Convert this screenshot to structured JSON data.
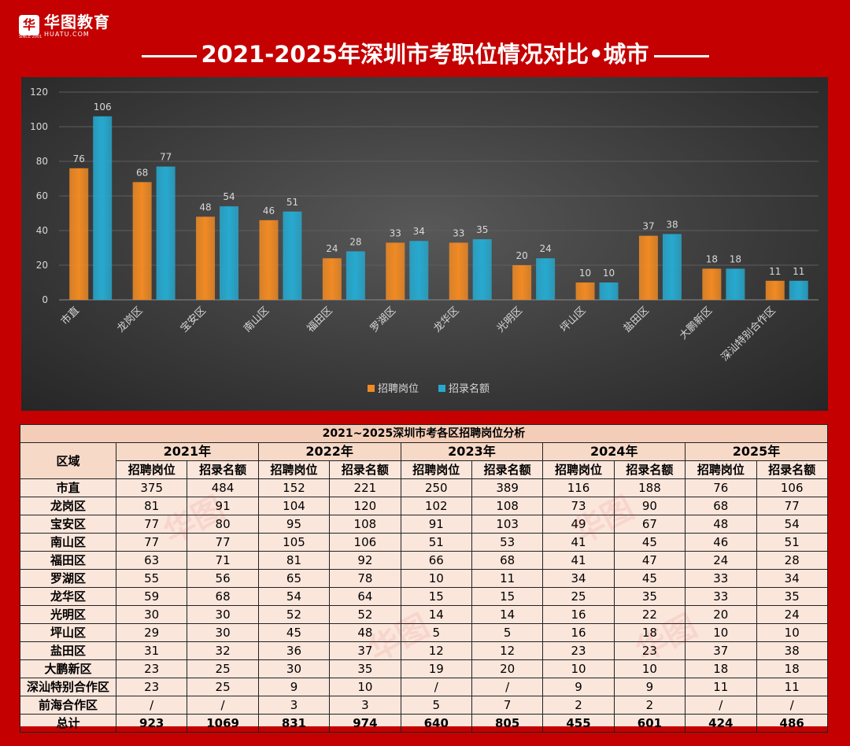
{
  "header": {
    "logo_cn": "华图教育",
    "logo_en": "HUATU.COM",
    "logo_since": "SINCE 2001",
    "title": "2021-2025年深圳市考职位情况对比•城市"
  },
  "colors": {
    "background": "#c40000",
    "series_posts": "#f08a24",
    "series_quota": "#27a9cf",
    "panel": "#3c3c3c"
  },
  "chart_data": {
    "type": "bar",
    "title": "",
    "categories": [
      "市直",
      "龙岗区",
      "宝安区",
      "南山区",
      "福田区",
      "罗湖区",
      "龙华区",
      "光明区",
      "坪山区",
      "盐田区",
      "大鹏新区",
      "深汕特别合作区"
    ],
    "series": [
      {
        "name": "招聘岗位",
        "values": [
          76,
          68,
          48,
          46,
          24,
          33,
          33,
          20,
          10,
          37,
          18,
          11
        ]
      },
      {
        "name": "招录名额",
        "values": [
          106,
          77,
          54,
          51,
          28,
          34,
          35,
          24,
          10,
          38,
          18,
          11
        ]
      }
    ],
    "ylim": [
      0,
      120
    ],
    "yticks": [
      0,
      20,
      40,
      60,
      80,
      100,
      120
    ],
    "legend": "bottom",
    "xlabel": "",
    "ylabel": ""
  },
  "table": {
    "caption": "2021~2025深圳市考各区招聘岗位分析",
    "region_header": "区域",
    "years": [
      "2021年",
      "2022年",
      "2023年",
      "2024年",
      "2025年"
    ],
    "sub_headers": [
      "招聘岗位",
      "招录名额"
    ],
    "rows": [
      {
        "region": "市直",
        "values": [
          "375",
          "484",
          "152",
          "221",
          "250",
          "389",
          "116",
          "188",
          "76",
          "106"
        ]
      },
      {
        "region": "龙岗区",
        "values": [
          "81",
          "91",
          "104",
          "120",
          "102",
          "108",
          "73",
          "90",
          "68",
          "77"
        ]
      },
      {
        "region": "宝安区",
        "values": [
          "77",
          "80",
          "95",
          "108",
          "91",
          "103",
          "49",
          "67",
          "48",
          "54"
        ]
      },
      {
        "region": "南山区",
        "values": [
          "77",
          "77",
          "105",
          "106",
          "51",
          "53",
          "41",
          "45",
          "46",
          "51"
        ]
      },
      {
        "region": "福田区",
        "values": [
          "63",
          "71",
          "81",
          "92",
          "66",
          "68",
          "41",
          "47",
          "24",
          "28"
        ]
      },
      {
        "region": "罗湖区",
        "values": [
          "55",
          "56",
          "65",
          "78",
          "10",
          "11",
          "34",
          "45",
          "33",
          "34"
        ]
      },
      {
        "region": "龙华区",
        "values": [
          "59",
          "68",
          "54",
          "64",
          "15",
          "15",
          "25",
          "35",
          "33",
          "35"
        ]
      },
      {
        "region": "光明区",
        "values": [
          "30",
          "30",
          "52",
          "52",
          "14",
          "14",
          "16",
          "22",
          "20",
          "24"
        ]
      },
      {
        "region": "坪山区",
        "values": [
          "29",
          "30",
          "45",
          "48",
          "5",
          "5",
          "16",
          "18",
          "10",
          "10"
        ]
      },
      {
        "region": "盐田区",
        "values": [
          "31",
          "32",
          "36",
          "37",
          "12",
          "12",
          "23",
          "23",
          "37",
          "38"
        ]
      },
      {
        "region": "大鹏新区",
        "values": [
          "23",
          "25",
          "30",
          "35",
          "19",
          "20",
          "10",
          "10",
          "18",
          "18"
        ]
      },
      {
        "region": "深汕特别合作区",
        "values": [
          "23",
          "25",
          "9",
          "10",
          "/",
          "/",
          "9",
          "9",
          "11",
          "11"
        ]
      },
      {
        "region": "前海合作区",
        "values": [
          "/",
          "/",
          "3",
          "3",
          "5",
          "7",
          "2",
          "2",
          "/",
          "/"
        ]
      },
      {
        "region": "总计",
        "values": [
          "923",
          "1069",
          "831",
          "974",
          "640",
          "805",
          "455",
          "601",
          "424",
          "486"
        ]
      }
    ]
  }
}
